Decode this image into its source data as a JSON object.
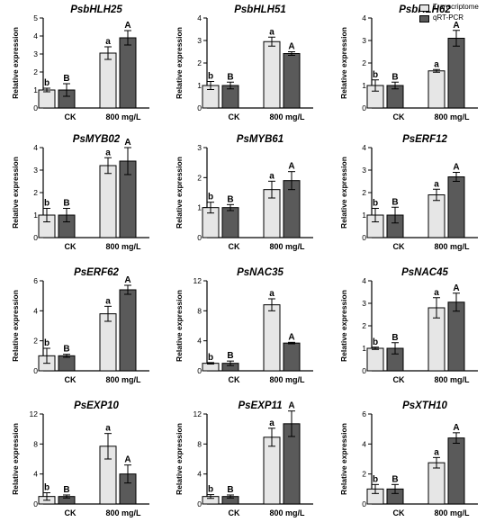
{
  "legend": {
    "entries": [
      {
        "label": "Transcriptome",
        "color": "#e6e6e6"
      },
      {
        "label": "qRT-PCR",
        "color": "#5a5a5a"
      }
    ]
  },
  "chart_data": [
    {
      "type": "bar",
      "title": "PsbHLH25",
      "ylabel": "Relative expression",
      "ylim": [
        0,
        5
      ],
      "yticks": [
        0,
        1,
        2,
        3,
        4,
        5
      ],
      "categories": [
        "CK",
        "800 mg/L"
      ],
      "series": [
        {
          "name": "Transcriptome",
          "values": [
            1.0,
            3.05
          ],
          "errors": [
            0.1,
            0.35
          ],
          "sig": [
            "b",
            "a"
          ]
        },
        {
          "name": "qRT-PCR",
          "values": [
            1.0,
            3.9
          ],
          "errors": [
            0.35,
            0.4
          ],
          "sig": [
            "B",
            "A"
          ]
        }
      ]
    },
    {
      "type": "bar",
      "title": "PsbHLH51",
      "ylabel": "Relative expression",
      "ylim": [
        0,
        4
      ],
      "yticks": [
        0,
        1,
        2,
        3,
        4
      ],
      "categories": [
        "CK",
        "800 mg/L"
      ],
      "series": [
        {
          "name": "Transcriptome",
          "values": [
            1.0,
            2.95
          ],
          "errors": [
            0.18,
            0.2
          ],
          "sig": [
            "b",
            "a"
          ]
        },
        {
          "name": "qRT-PCR",
          "values": [
            1.0,
            2.42
          ],
          "errors": [
            0.15,
            0.08
          ],
          "sig": [
            "B",
            "A"
          ]
        }
      ]
    },
    {
      "type": "bar",
      "title": "PsbHLH62",
      "ylabel": "Relative expression",
      "ylim": [
        0,
        4
      ],
      "yticks": [
        0,
        1,
        2,
        3,
        4
      ],
      "categories": [
        "CK",
        "800 mg/L"
      ],
      "series": [
        {
          "name": "Transcriptome",
          "values": [
            1.0,
            1.65
          ],
          "errors": [
            0.25,
            0.06
          ],
          "sig": [
            "b",
            "a"
          ]
        },
        {
          "name": "qRT-PCR",
          "values": [
            1.0,
            3.1
          ],
          "errors": [
            0.15,
            0.35
          ],
          "sig": [
            "B",
            "A"
          ]
        }
      ]
    },
    {
      "type": "bar",
      "title": "PsMYB02",
      "ylabel": "Relative expression",
      "ylim": [
        0,
        4
      ],
      "yticks": [
        0,
        1,
        2,
        3,
        4
      ],
      "categories": [
        "CK",
        "800 mg/L"
      ],
      "series": [
        {
          "name": "Transcriptome",
          "values": [
            1.0,
            3.2
          ],
          "errors": [
            0.3,
            0.35
          ],
          "sig": [
            "b",
            "a"
          ]
        },
        {
          "name": "qRT-PCR",
          "values": [
            1.0,
            3.4
          ],
          "errors": [
            0.3,
            0.6
          ],
          "sig": [
            "B",
            "A"
          ]
        }
      ]
    },
    {
      "type": "bar",
      "title": "PsMYB61",
      "ylabel": "Relative expression",
      "ylim": [
        0,
        3
      ],
      "yticks": [
        0,
        1,
        2,
        3
      ],
      "categories": [
        "CK",
        "800 mg/L"
      ],
      "series": [
        {
          "name": "Transcriptome",
          "values": [
            1.0,
            1.6
          ],
          "errors": [
            0.18,
            0.28
          ],
          "sig": [
            "b",
            "a"
          ]
        },
        {
          "name": "qRT-PCR",
          "values": [
            1.0,
            1.9
          ],
          "errors": [
            0.1,
            0.3
          ],
          "sig": [
            "B",
            "A"
          ]
        }
      ]
    },
    {
      "type": "bar",
      "title": "PsERF12",
      "ylabel": "Relative expression",
      "ylim": [
        0,
        4
      ],
      "yticks": [
        0,
        1,
        2,
        3,
        4
      ],
      "categories": [
        "CK",
        "800 mg/L"
      ],
      "series": [
        {
          "name": "Transcriptome",
          "values": [
            1.0,
            1.9
          ],
          "errors": [
            0.3,
            0.25
          ],
          "sig": [
            "b",
            "a"
          ]
        },
        {
          "name": "qRT-PCR",
          "values": [
            1.0,
            2.7
          ],
          "errors": [
            0.35,
            0.2
          ],
          "sig": [
            "B",
            "A"
          ]
        }
      ]
    },
    {
      "type": "bar",
      "title": "PsERF62",
      "ylabel": "Relative expression",
      "ylim": [
        0,
        6
      ],
      "yticks": [
        0,
        2,
        4,
        6
      ],
      "categories": [
        "CK",
        "800 mg/L"
      ],
      "series": [
        {
          "name": "Transcriptome",
          "values": [
            1.0,
            3.8
          ],
          "errors": [
            0.5,
            0.5
          ],
          "sig": [
            "b",
            "a"
          ]
        },
        {
          "name": "qRT-PCR",
          "values": [
            1.0,
            5.4
          ],
          "errors": [
            0.1,
            0.3
          ],
          "sig": [
            "B",
            "A"
          ]
        }
      ]
    },
    {
      "type": "bar",
      "title": "PsNAC35",
      "ylabel": "Relative expression",
      "ylim": [
        0,
        12
      ],
      "yticks": [
        0,
        4,
        8,
        12
      ],
      "categories": [
        "CK",
        "800 mg/L"
      ],
      "series": [
        {
          "name": "Transcriptome",
          "values": [
            1.0,
            8.8
          ],
          "errors": [
            0.1,
            0.8
          ],
          "sig": [
            "b",
            "a"
          ]
        },
        {
          "name": "qRT-PCR",
          "values": [
            1.0,
            3.7
          ],
          "errors": [
            0.3,
            0.1
          ],
          "sig": [
            "B",
            "A"
          ]
        }
      ]
    },
    {
      "type": "bar",
      "title": "PsNAC45",
      "ylabel": "Relative expression",
      "ylim": [
        0,
        4
      ],
      "yticks": [
        0,
        1,
        2,
        3,
        4
      ],
      "categories": [
        "CK",
        "800 mg/L"
      ],
      "series": [
        {
          "name": "Transcriptome",
          "values": [
            1.0,
            2.8
          ],
          "errors": [
            0.05,
            0.45
          ],
          "sig": [
            "b",
            "a"
          ]
        },
        {
          "name": "qRT-PCR",
          "values": [
            1.0,
            3.05
          ],
          "errors": [
            0.25,
            0.4
          ],
          "sig": [
            "B",
            "A"
          ]
        }
      ]
    },
    {
      "type": "bar",
      "title": "PsEXP10",
      "ylabel": "Relative expression",
      "ylim": [
        0,
        12
      ],
      "yticks": [
        0,
        4,
        8,
        12
      ],
      "categories": [
        "CK",
        "800 mg/L"
      ],
      "series": [
        {
          "name": "Transcriptome",
          "values": [
            1.0,
            7.7
          ],
          "errors": [
            0.5,
            1.7
          ],
          "sig": [
            "b",
            "a"
          ]
        },
        {
          "name": "qRT-PCR",
          "values": [
            1.0,
            4.0
          ],
          "errors": [
            0.2,
            1.2
          ],
          "sig": [
            "B",
            "A"
          ]
        }
      ]
    },
    {
      "type": "bar",
      "title": "PsEXP11",
      "ylabel": "Relative expression",
      "ylim": [
        0,
        12
      ],
      "yticks": [
        0,
        4,
        8,
        12
      ],
      "categories": [
        "CK",
        "800 mg/L"
      ],
      "series": [
        {
          "name": "Transcriptome",
          "values": [
            1.0,
            8.9
          ],
          "errors": [
            0.25,
            1.2
          ],
          "sig": [
            "b",
            "a"
          ]
        },
        {
          "name": "qRT-PCR",
          "values": [
            1.0,
            10.7
          ],
          "errors": [
            0.2,
            1.7
          ],
          "sig": [
            "B",
            "A"
          ]
        }
      ]
    },
    {
      "type": "bar",
      "title": "PsXTH10",
      "ylabel": "Relative expression",
      "ylim": [
        0,
        6
      ],
      "yticks": [
        0,
        2,
        4,
        6
      ],
      "categories": [
        "CK",
        "800 mg/L"
      ],
      "series": [
        {
          "name": "Transcriptome",
          "values": [
            1.0,
            2.75
          ],
          "errors": [
            0.3,
            0.35
          ],
          "sig": [
            "b",
            "a"
          ]
        },
        {
          "name": "qRT-PCR",
          "values": [
            1.0,
            4.4
          ],
          "errors": [
            0.3,
            0.35
          ],
          "sig": [
            "B",
            "A"
          ]
        }
      ]
    }
  ]
}
